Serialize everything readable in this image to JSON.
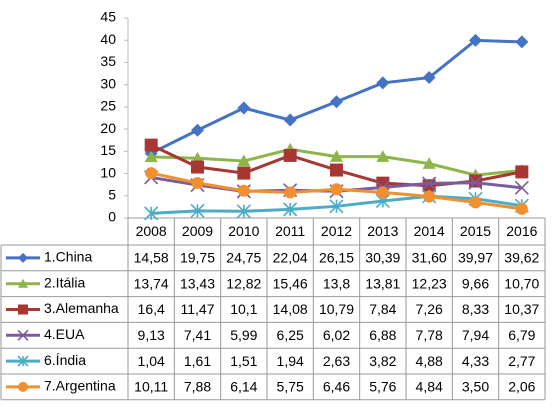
{
  "chart_data": {
    "type": "line",
    "categories": [
      "2008",
      "2009",
      "2010",
      "2011",
      "2012",
      "2013",
      "2014",
      "2015",
      "2016"
    ],
    "ylim": [
      0,
      45
    ],
    "yticks": [
      0,
      5,
      10,
      15,
      20,
      25,
      30,
      35,
      40,
      45
    ],
    "series": [
      {
        "name": "1.China",
        "color": "#4472c4",
        "marker": "diamond",
        "values": [
          14.58,
          19.75,
          24.75,
          22.04,
          26.15,
          30.39,
          31.6,
          39.97,
          39.62
        ],
        "value_labels": [
          "14,58",
          "19,75",
          "24,75",
          "22,04",
          "26,15",
          "30,39",
          "31,60",
          "39,97",
          "39,62"
        ]
      },
      {
        "name": "2.Itália",
        "color": "#8db54a",
        "marker": "triangle",
        "values": [
          13.74,
          13.43,
          12.82,
          15.46,
          13.8,
          13.81,
          12.23,
          9.66,
          10.7
        ],
        "value_labels": [
          "13,74",
          "13,43",
          "12,82",
          "15,46",
          "13,8",
          "13,81",
          "12,23",
          "9,66",
          "10,70"
        ]
      },
      {
        "name": "3.Alemanha",
        "color": "#a83632",
        "marker": "square",
        "values": [
          16.4,
          11.47,
          10.1,
          14.08,
          10.79,
          7.84,
          7.26,
          8.33,
          10.37
        ],
        "value_labels": [
          "16,4",
          "11,47",
          "10,1",
          "14,08",
          "10,79",
          "7,84",
          "7,26",
          "8,33",
          "10,37"
        ]
      },
      {
        "name": "4.EUA",
        "color": "#7a5c9e",
        "marker": "x",
        "values": [
          9.13,
          7.41,
          5.99,
          6.25,
          6.02,
          6.88,
          7.78,
          7.94,
          6.79
        ],
        "value_labels": [
          "9,13",
          "7,41",
          "5,99",
          "6,25",
          "6,02",
          "6,88",
          "7,78",
          "7,94",
          "6,79"
        ]
      },
      {
        "name": "6.Índia",
        "color": "#4bacc6",
        "marker": "star",
        "values": [
          1.04,
          1.61,
          1.51,
          1.94,
          2.63,
          3.82,
          4.88,
          4.33,
          2.77
        ],
        "value_labels": [
          "1,04",
          "1,61",
          "1,51",
          "1,94",
          "2,63",
          "3,82",
          "4,88",
          "4,33",
          "2,77"
        ]
      },
      {
        "name": "7.Argentina",
        "color": "#f09030",
        "marker": "circle",
        "values": [
          10.11,
          7.88,
          6.14,
          5.75,
          6.46,
          5.76,
          4.84,
          3.5,
          2.06
        ],
        "value_labels": [
          "10,11",
          "7,88",
          "6,14",
          "5,75",
          "6,46",
          "5,76",
          "4,84",
          "3,50",
          "2,06"
        ]
      }
    ]
  }
}
